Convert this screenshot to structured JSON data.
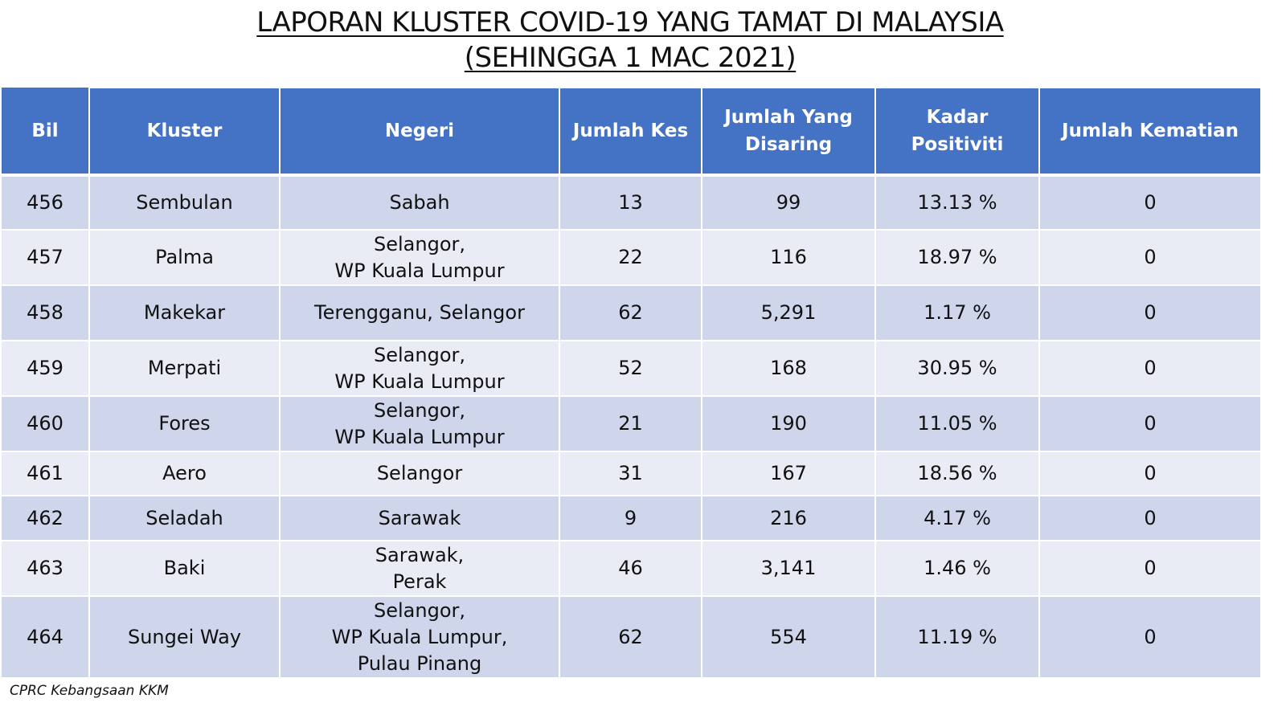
{
  "title": {
    "line1": "LAPORAN KLUSTER COVID-19 YANG TAMAT DI MALAYSIA",
    "line2": "(SEHINGGA 1 MAC 2021)"
  },
  "table": {
    "headers": {
      "bil": "Bil",
      "kluster": "Kluster",
      "negeri": "Negeri",
      "jumlah_kes": "Jumlah Kes",
      "jumlah_disaring": [
        "Jumlah Yang",
        "Disaring"
      ],
      "kadar_positiviti": "Kadar Positiviti",
      "jumlah_kematian": "Jumlah Kematian"
    },
    "rows": [
      {
        "bil": "456",
        "kluster": "Sembulan",
        "negeri": [
          "Sabah"
        ],
        "kes": "13",
        "disaring": "99",
        "positiviti": "13.13 %",
        "kematian": "0"
      },
      {
        "bil": "457",
        "kluster": "Palma",
        "negeri": [
          "Selangor,",
          "WP Kuala Lumpur"
        ],
        "kes": "22",
        "disaring": "116",
        "positiviti": "18.97 %",
        "kematian": "0"
      },
      {
        "bil": "458",
        "kluster": "Makekar",
        "negeri": [
          "Terengganu, Selangor"
        ],
        "kes": "62",
        "disaring": "5,291",
        "positiviti": "1.17 %",
        "kematian": "0"
      },
      {
        "bil": "459",
        "kluster": "Merpati",
        "negeri": [
          "Selangor,",
          "WP Kuala Lumpur"
        ],
        "kes": "52",
        "disaring": "168",
        "positiviti": "30.95 %",
        "kematian": "0"
      },
      {
        "bil": "460",
        "kluster": "Fores",
        "negeri": [
          "Selangor,",
          "WP Kuala Lumpur"
        ],
        "kes": "21",
        "disaring": "190",
        "positiviti": "11.05 %",
        "kematian": "0"
      },
      {
        "bil": "461",
        "kluster": "Aero",
        "negeri": [
          "Selangor"
        ],
        "kes": "31",
        "disaring": "167",
        "positiviti": "18.56 %",
        "kematian": "0"
      },
      {
        "bil": "462",
        "kluster": "Seladah",
        "negeri": [
          "Sarawak"
        ],
        "kes": "9",
        "disaring": "216",
        "positiviti": "4.17 %",
        "kematian": "0"
      },
      {
        "bil": "463",
        "kluster": "Baki",
        "negeri": [
          "Sarawak,",
          "Perak"
        ],
        "kes": "46",
        "disaring": "3,141",
        "positiviti": "1.46 %",
        "kematian": "0"
      },
      {
        "bil": "464",
        "kluster": "Sungei Way",
        "negeri": [
          "Selangor,",
          "WP Kuala Lumpur,",
          "Pulau Pinang"
        ],
        "kes": "62",
        "disaring": "554",
        "positiviti": "11.19 %",
        "kematian": "0"
      }
    ]
  },
  "source": "CPRC Kebangsaan KKM",
  "colors": {
    "header_bg": "#4472c4",
    "row_odd": "#cfd5ea",
    "row_even": "#e9ebf5"
  }
}
